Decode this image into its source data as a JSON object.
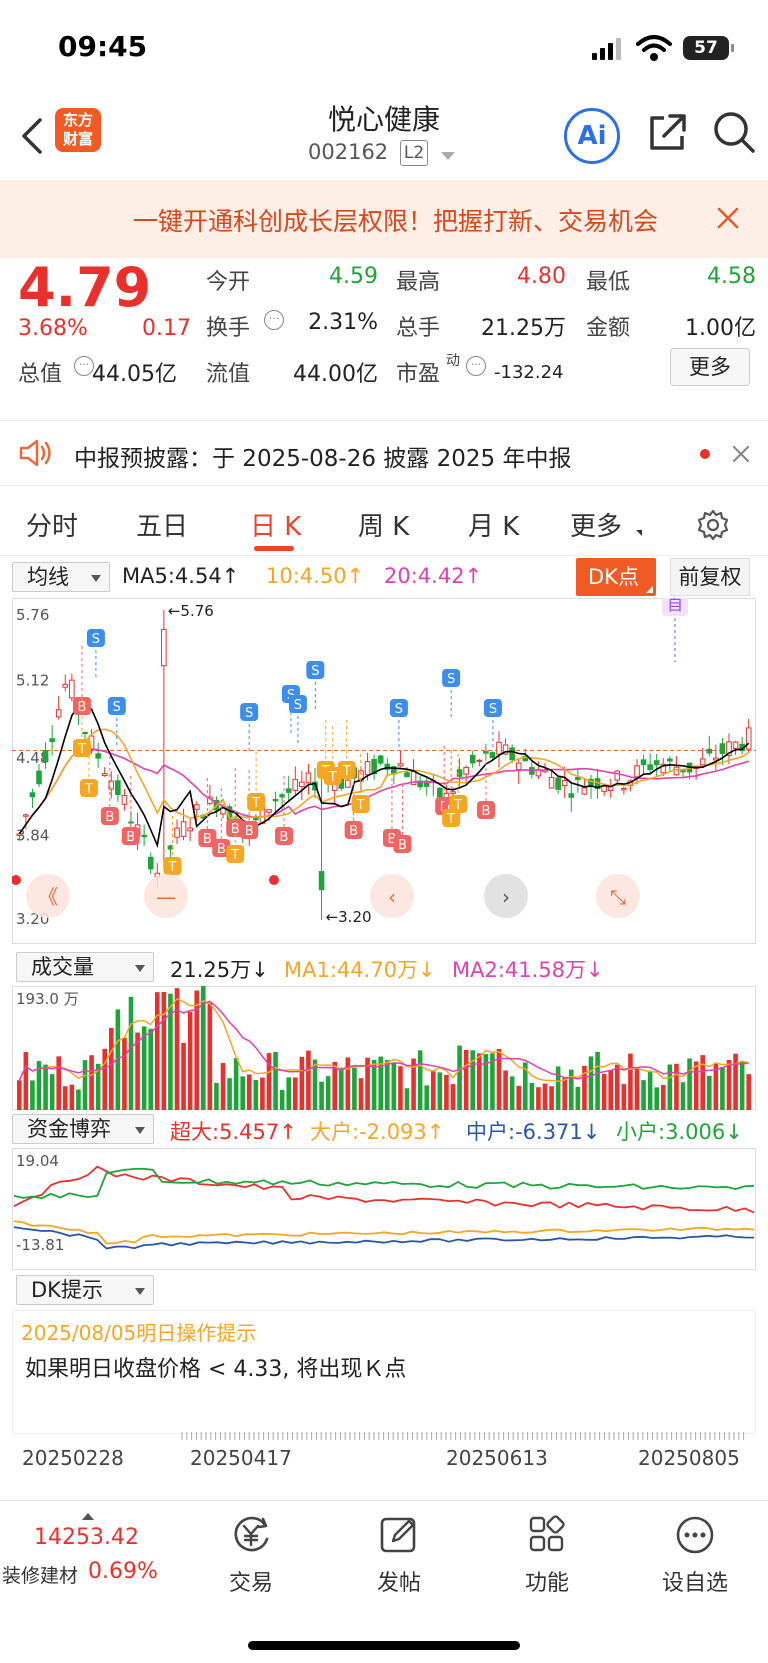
{
  "status_bar": {
    "time": "09:45",
    "battery": "57"
  },
  "nav": {
    "logo_line1": "东方",
    "logo_line2": "财富",
    "stock_name": "悦心健康",
    "stock_code": "002162",
    "level_badge": "L2",
    "ai_label": "Ai"
  },
  "banner": {
    "text": "一键开通科创成长层权限！把握打新、交易机会"
  },
  "quote": {
    "price": "4.79",
    "change_pct": "3.68%",
    "change_abs": "0.17",
    "total_value_label": "总值",
    "total_value": "44.05亿",
    "rows": [
      [
        {
          "label": "今开",
          "value": "4.59"
        },
        {
          "label": "最高",
          "value": "4.80"
        },
        {
          "label": "最低",
          "value": "4.58"
        }
      ],
      [
        {
          "label": "换手",
          "value": "2.31%"
        },
        {
          "label": "总手",
          "value": "21.25万"
        },
        {
          "label": "金额",
          "value": "1.00亿"
        }
      ],
      [
        {
          "label": "流值",
          "value": "44.00亿"
        },
        {
          "label": "市盈",
          "sup": "动",
          "value": "-132.24"
        }
      ]
    ],
    "more_button": "更多"
  },
  "notice": {
    "text": "中报预披露：于 2025-08-26 披露 2025 年中报"
  },
  "tabs": {
    "items": [
      "分时",
      "五日",
      "日 K",
      "周 K",
      "月 K",
      "更多"
    ],
    "active_index": 2
  },
  "kline": {
    "ma_select": "均线",
    "ma5": "MA5:4.54↑",
    "ma10": "10:4.50↑",
    "ma20": "20:4.42↑",
    "dk_button": "DK点",
    "adjust_button": "前复权",
    "y_labels": [
      "5.76",
      "5.12",
      "4.48",
      "3.84",
      "3.20"
    ],
    "high_marker": "←5.76",
    "low_marker": "←3.20",
    "self_marker": "自",
    "colors": {
      "ma5": "#000000",
      "ma10": "#f5a623",
      "ma20": "#e040b0",
      "up": "#e8312d",
      "down": "#1ea53a"
    }
  },
  "volume": {
    "select": "成交量",
    "current": "21.25万↓",
    "ma1": "MA1:44.70万↓",
    "ma2": "MA2:41.58万↓",
    "y_max": "193.0 万"
  },
  "capital": {
    "select": "资金博弈",
    "super_large": "超大:5.457↑",
    "large": "大户:-2.093↑",
    "medium": "中户:-6.371↓",
    "small": "小户:3.006↓",
    "y_max": "19.04",
    "y_min": "-13.81"
  },
  "dk_tip": {
    "select": "DK提示",
    "date_line": "2025/08/05明日操作提示",
    "message": "如果明日收盘价格 < 4.33, 将出现Ｋ点"
  },
  "x_axis": [
    "20250228",
    "20250417",
    "20250613",
    "20250805"
  ],
  "bottom": {
    "index_value": "14253.42",
    "index_name": "装修建材",
    "index_change": "0.69%",
    "items": [
      "交易",
      "发帖",
      "功能",
      "设自选"
    ]
  }
}
